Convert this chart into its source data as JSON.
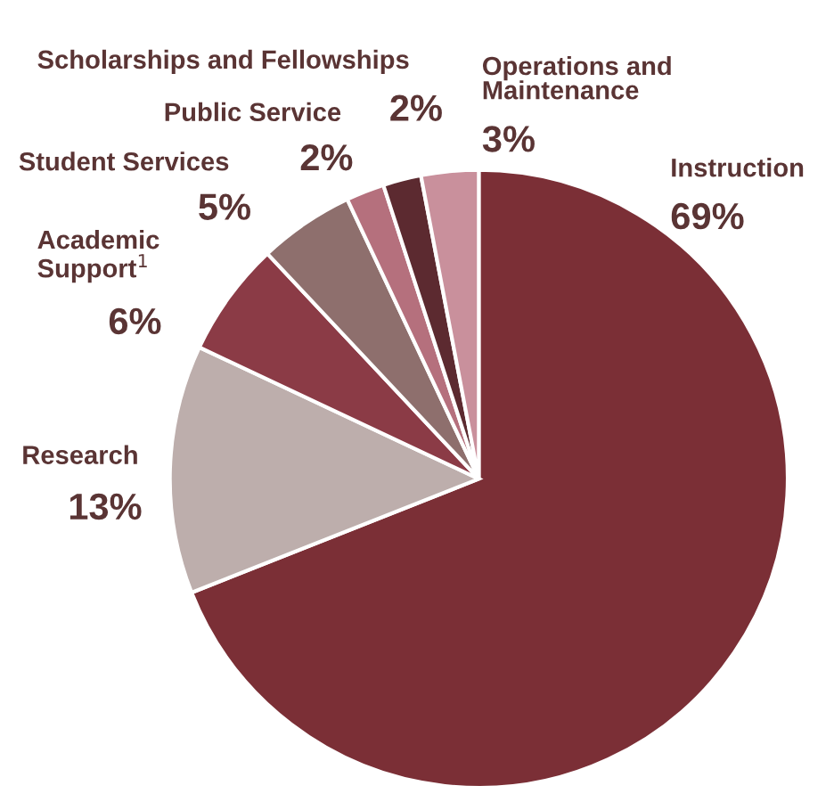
{
  "chart_data": {
    "type": "pie",
    "categories": [
      "Instruction",
      "Research",
      "Academic\nSupport$^{1}$",
      "Student Services",
      "Public Service",
      "Scholarships and Fellowships",
      "Operations and\nMaintenance"
    ],
    "values": [
      69,
      13,
      6,
      5,
      2,
      2,
      3
    ],
    "value_labels": [
      "69%",
      "13%",
      "6%",
      "5%",
      "2%",
      "2%",
      "3%"
    ],
    "colors": [
      "#7b2f36",
      "#bdaeac",
      "#8b3b46",
      "#8e6f6d",
      "#b5707d",
      "#5c2a30",
      "#c9909c"
    ]
  }
}
